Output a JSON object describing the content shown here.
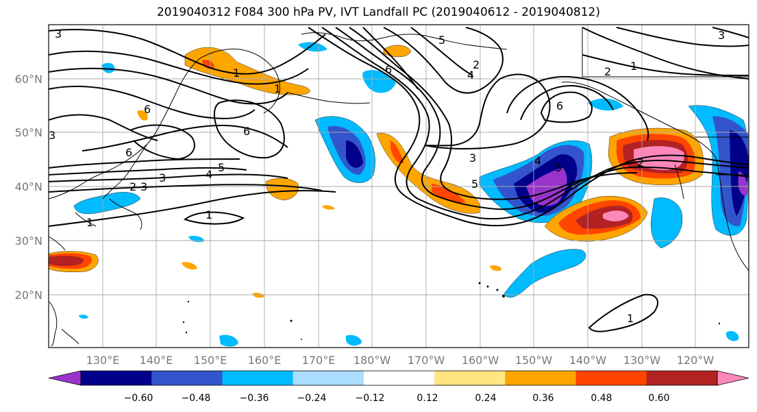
{
  "title": "2019040312 F084 300 hPa PV, IVT Landfall PC (2019040612 - 2019040812)",
  "lat_labels": [
    "60°N",
    "50°N",
    "40°N",
    "30°N",
    "20°N"
  ],
  "lon_labels": [
    "130°E",
    "140°E",
    "150°E",
    "160°E",
    "170°E",
    "180°W",
    "170°W",
    "160°W",
    "150°W",
    "140°W",
    "130°W",
    "120°W"
  ],
  "colorbar": {
    "ticks": [
      "−0.60",
      "−0.48",
      "−0.36",
      "−0.24",
      "−0.12",
      "0.12",
      "0.24",
      "0.36",
      "0.48",
      "0.60"
    ],
    "colors": [
      "#9933cc",
      "#00008b",
      "#3355cc",
      "#00bbff",
      "#aaddff",
      "#ffffff",
      "#ffe680",
      "#ffa500",
      "#ff4500",
      "#b22222",
      "#ff88bb"
    ]
  },
  "contour_labels": [
    "3",
    "1",
    "6",
    "5",
    "6",
    "1",
    "6",
    "3",
    "5",
    "4",
    "3",
    "2",
    "1",
    "3",
    "2",
    "1",
    "5",
    "6",
    "4",
    "2",
    "6",
    "3",
    "5",
    "2",
    "1",
    "3",
    "4",
    "1"
  ]
}
